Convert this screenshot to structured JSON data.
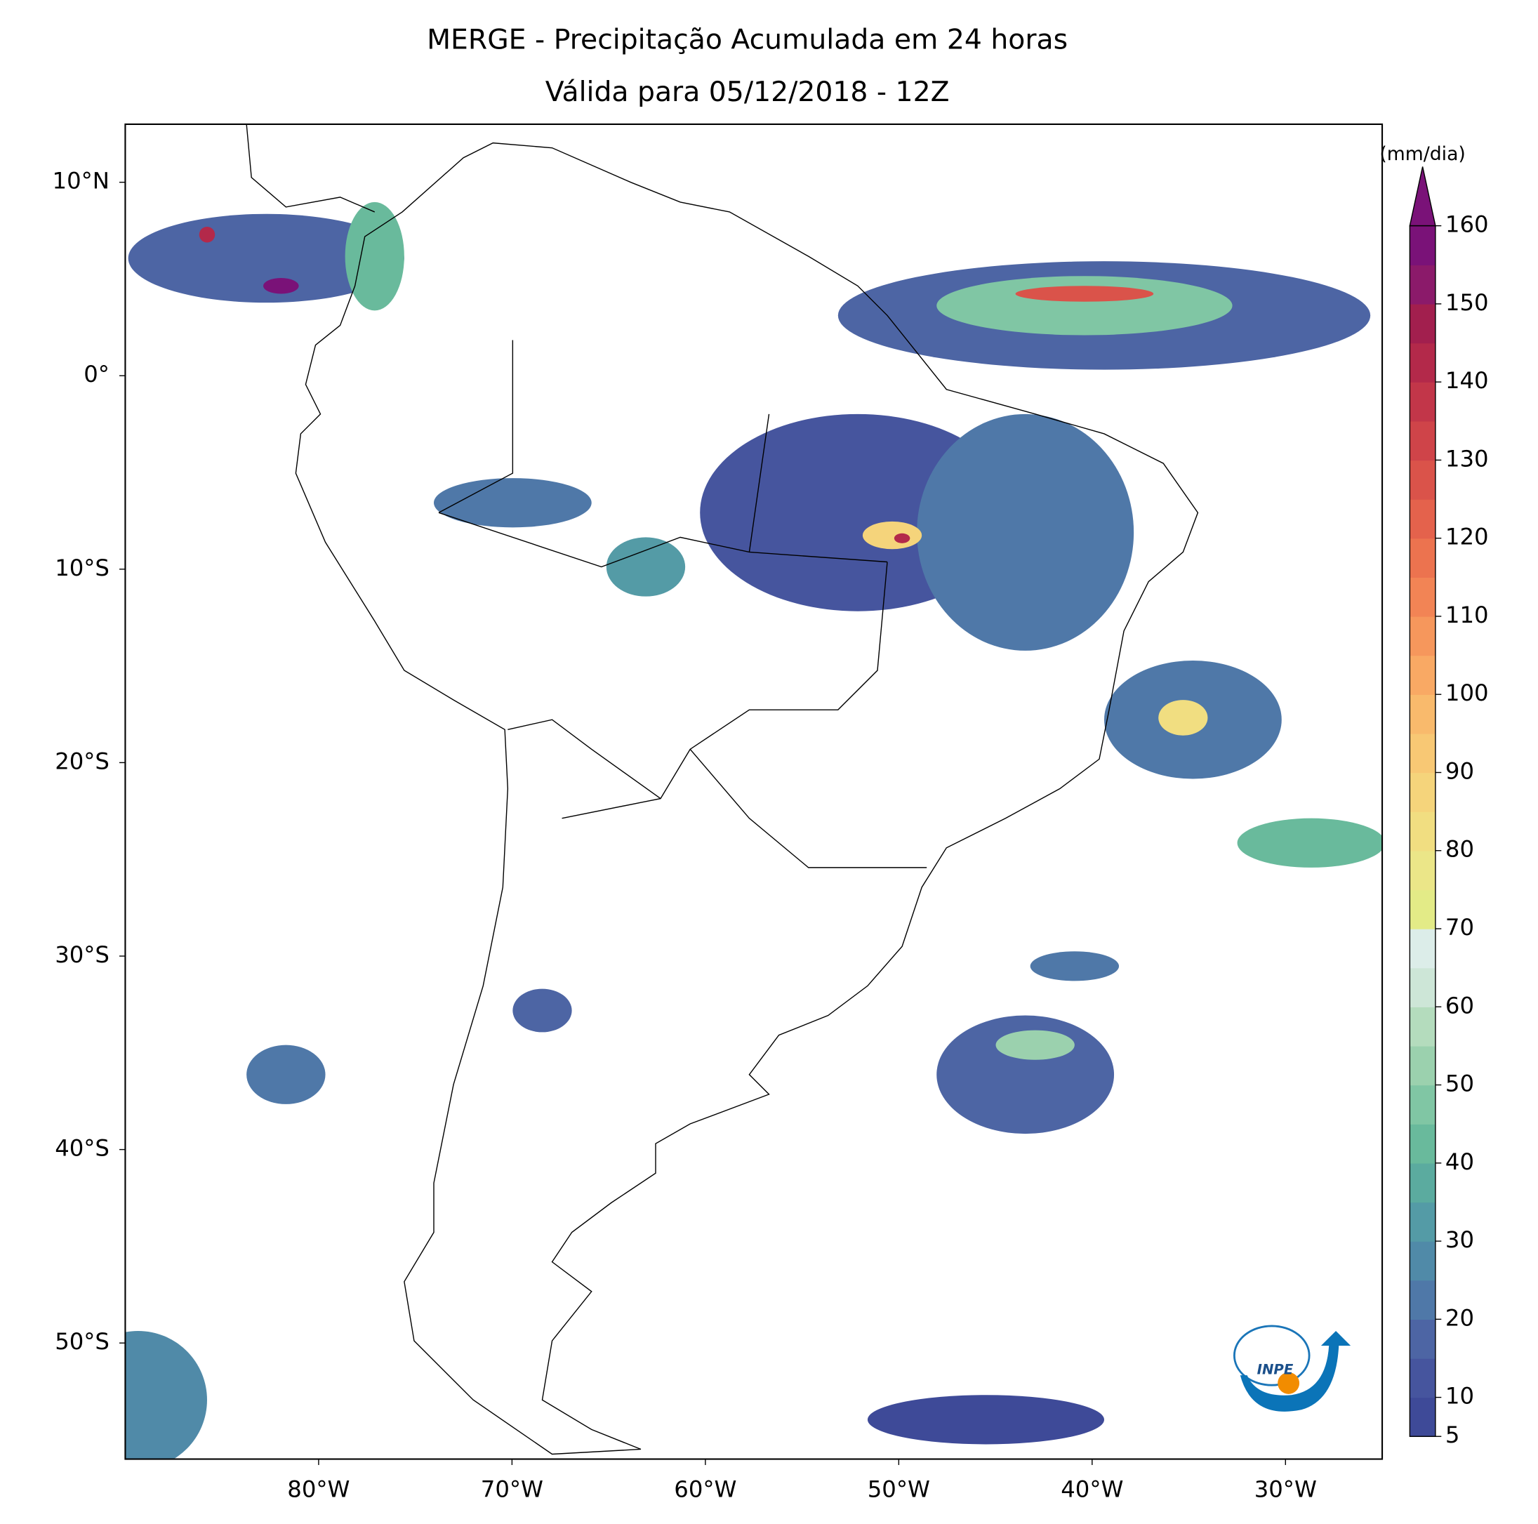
{
  "chart_data": {
    "type": "map",
    "title": "MERGE - Precipitação Acumulada em 24 horas",
    "subtitle": "Válida para 05/12/2018 - 12Z",
    "xlim": [
      -90,
      -25
    ],
    "ylim": [
      -56,
      13
    ],
    "xticks": [
      {
        "value": -80,
        "label": "80°W"
      },
      {
        "value": -70,
        "label": "70°W"
      },
      {
        "value": -60,
        "label": "60°W"
      },
      {
        "value": -50,
        "label": "50°W"
      },
      {
        "value": -40,
        "label": "40°W"
      },
      {
        "value": -30,
        "label": "30°W"
      }
    ],
    "yticks": [
      {
        "value": 10,
        "label": "10°N"
      },
      {
        "value": 0,
        "label": "0°"
      },
      {
        "value": -10,
        "label": "10°S"
      },
      {
        "value": -20,
        "label": "20°S"
      },
      {
        "value": -30,
        "label": "30°S"
      },
      {
        "value": -40,
        "label": "40°S"
      },
      {
        "value": -50,
        "label": "50°S"
      }
    ],
    "colorbar": {
      "label": "(mm/dia)",
      "lim": [
        5,
        160
      ],
      "ticks": [
        5,
        10,
        20,
        30,
        40,
        50,
        60,
        70,
        80,
        90,
        100,
        110,
        120,
        130,
        140,
        150,
        160
      ],
      "levels": [
        5,
        10,
        15,
        20,
        25,
        30,
        35,
        40,
        45,
        50,
        55,
        60,
        65,
        70,
        75,
        80,
        85,
        90,
        95,
        100,
        105,
        110,
        115,
        120,
        125,
        130,
        135,
        140,
        145,
        150,
        155,
        160
      ],
      "colors": [
        "#3e4a98",
        "#46559e",
        "#4d65a4",
        "#4f78a8",
        "#508aa8",
        "#549ba6",
        "#5bab9f",
        "#69ba9c",
        "#80c6a4",
        "#9bd1ae",
        "#b4dcbd",
        "#cde6d7",
        "#dcede9",
        "#e3eb87",
        "#ebe688",
        "#f1de81",
        "#f5d47b",
        "#f8c874",
        "#f9ba6c",
        "#f9a964",
        "#f6975c",
        "#f28455",
        "#ec734f",
        "#e4624c",
        "#da534a",
        "#cf4449",
        "#c23649",
        "#b3294a",
        "#a21f4e",
        "#8b1a6a",
        "#7a1278"
      ],
      "extend_color": "#7a1278"
    }
  }
}
